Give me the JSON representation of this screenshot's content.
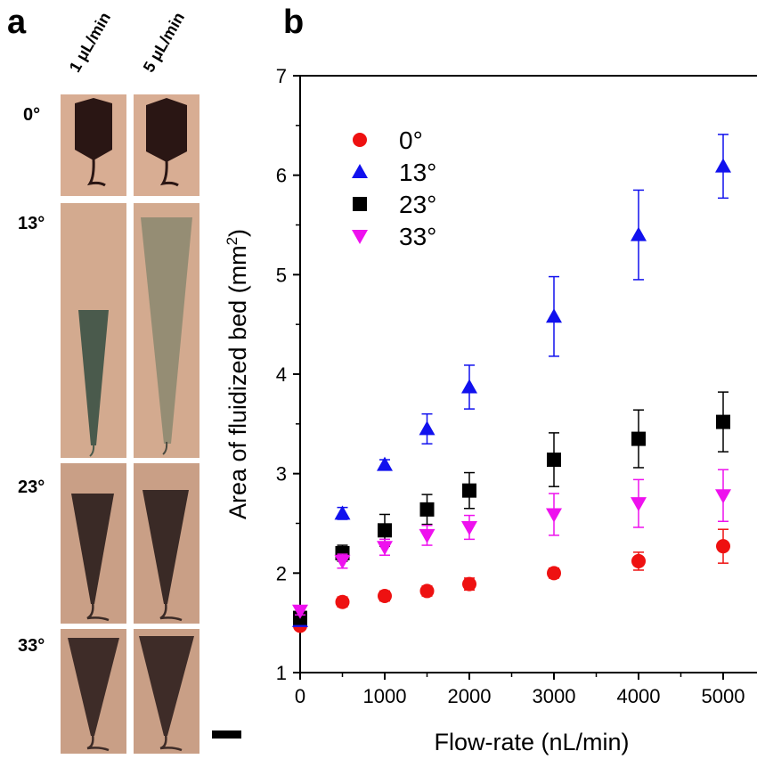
{
  "panel_a": {
    "letter": "a",
    "columns": [
      "1 μL/min",
      "5 μL/min"
    ],
    "rows": [
      "0°",
      "13°",
      "23°",
      "33°"
    ]
  },
  "panel_b": {
    "letter": "b"
  },
  "colors": {
    "red": "#ee1111",
    "blue": "#1111ee",
    "black": "#000000",
    "magenta": "#ee11ee",
    "photo_bg": "#d8ad93"
  },
  "chart_data": {
    "type": "scatter",
    "xlabel": "Flow-rate (nL/min)",
    "ylabel": "Area of fluidized bed (mm",
    "ylabel_sup": "2",
    "ylabel_close": ")",
    "xlim": [
      0,
      5400
    ],
    "ylim": [
      1,
      7
    ],
    "xticks": [
      0,
      1000,
      2000,
      3000,
      4000,
      5000
    ],
    "yticks": [
      1,
      2,
      3,
      4,
      5,
      6,
      7
    ],
    "legend_position": "top-left",
    "x": [
      0,
      500,
      1000,
      1500,
      2000,
      3000,
      4000,
      5000
    ],
    "series": [
      {
        "name": "0°",
        "marker": "circle",
        "color": "#ee1111",
        "values": [
          1.47,
          1.71,
          1.77,
          1.82,
          1.89,
          2.0,
          2.12,
          2.27
        ],
        "errors": [
          0.04,
          0.05,
          0.05,
          0.05,
          0.06,
          0.05,
          0.09,
          0.17
        ]
      },
      {
        "name": "13°",
        "marker": "triangle-up",
        "color": "#1111ee",
        "values": [
          1.52,
          2.6,
          3.09,
          3.45,
          3.87,
          4.58,
          5.4,
          6.09
        ],
        "errors": [
          0.03,
          0.06,
          0.05,
          0.15,
          0.22,
          0.4,
          0.45,
          0.32
        ]
      },
      {
        "name": "23°",
        "marker": "square",
        "color": "#000000",
        "values": [
          1.55,
          2.2,
          2.43,
          2.64,
          2.83,
          3.14,
          3.35,
          3.52
        ],
        "errors": [
          0.04,
          0.08,
          0.16,
          0.15,
          0.18,
          0.27,
          0.29,
          0.3
        ]
      },
      {
        "name": "33°",
        "marker": "triangle-down",
        "color": "#ee11ee",
        "values": [
          1.62,
          2.12,
          2.26,
          2.38,
          2.46,
          2.59,
          2.7,
          2.78
        ],
        "errors": [
          0.04,
          0.07,
          0.08,
          0.1,
          0.12,
          0.21,
          0.24,
          0.26
        ]
      }
    ]
  }
}
